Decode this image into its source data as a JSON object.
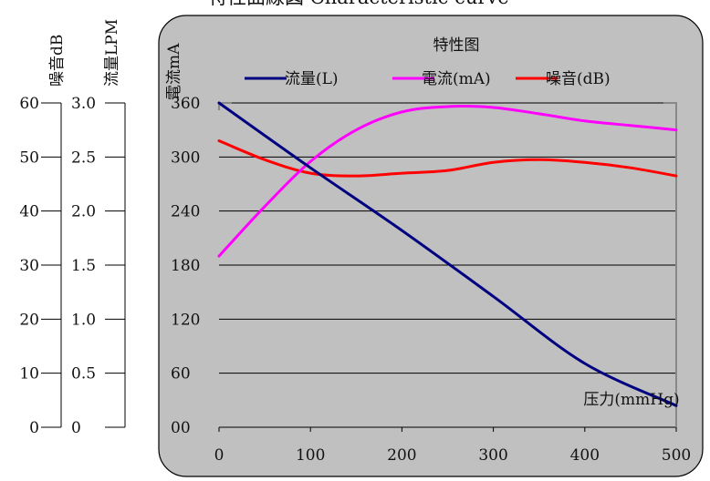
{
  "header_text": "特性曲線図 Characteristic curve",
  "chart_data": {
    "type": "line",
    "title": "特性图",
    "xlabel": "压力(mmHg)",
    "ylabel": "電流mA",
    "x": [
      0,
      100,
      200,
      300,
      400,
      500
    ],
    "xlim": [
      0,
      500
    ],
    "ylim": [
      0,
      360
    ],
    "y_ticks": [
      "00",
      "60",
      "120",
      "180",
      "240",
      "300",
      "360"
    ],
    "x_ticks": [
      "0",
      "100",
      "200",
      "300",
      "400",
      "500"
    ],
    "grid": true,
    "legend_position": "top",
    "series": [
      {
        "name": "流量(L)",
        "color": "#000080",
        "axis": "left-flow",
        "points": [
          [
            0,
            3.0
          ],
          [
            100,
            2.4
          ],
          [
            200,
            1.82
          ],
          [
            300,
            1.21
          ],
          [
            400,
            0.59
          ],
          [
            500,
            0.2
          ]
        ]
      },
      {
        "name": "電流(mA)",
        "color": "#ff00ff",
        "axis": "main",
        "points": [
          [
            0,
            190
          ],
          [
            50,
            245
          ],
          [
            100,
            295
          ],
          [
            150,
            330
          ],
          [
            200,
            350
          ],
          [
            250,
            356
          ],
          [
            300,
            355
          ],
          [
            350,
            348
          ],
          [
            400,
            340
          ],
          [
            450,
            335
          ],
          [
            500,
            330
          ]
        ]
      },
      {
        "name": "噪音(dB)",
        "color": "#ff0000",
        "axis": "left-noise",
        "points": [
          [
            0,
            53
          ],
          [
            50,
            49.5
          ],
          [
            100,
            47
          ],
          [
            150,
            46.5
          ],
          [
            200,
            47
          ],
          [
            250,
            47.5
          ],
          [
            300,
            49
          ],
          [
            350,
            49.5
          ],
          [
            400,
            49
          ],
          [
            450,
            48
          ],
          [
            500,
            46.5
          ]
        ]
      }
    ],
    "secondary_axes": [
      {
        "label": "噪音dB",
        "ticks": [
          "0",
          "10",
          "20",
          "30",
          "40",
          "50",
          "60"
        ],
        "range": [
          0,
          60
        ]
      },
      {
        "label": "流量LPM",
        "ticks": [
          "0",
          "0.5",
          "1.0",
          "1.5",
          "2.0",
          "2.5",
          "3.0"
        ],
        "range": [
          0,
          3.0
        ]
      }
    ]
  }
}
